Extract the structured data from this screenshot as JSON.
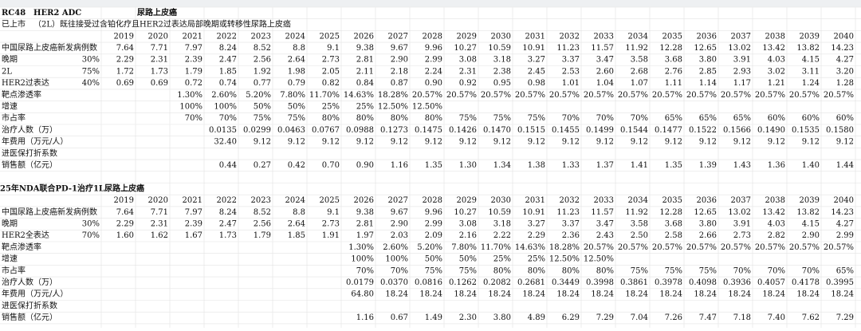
{
  "sections": [
    {
      "title_row": [
        "RC48",
        "HER2 ADC",
        "尿路上皮癌"
      ],
      "subtitle_row": [
        "已上市",
        "（2L）既往接受过含铂化疗且HER2过表达局部晚期或转移性尿路上皮癌"
      ],
      "years": [
        2019,
        2020,
        2021,
        2022,
        2023,
        2024,
        2025,
        2026,
        2027,
        2028,
        2029,
        2030,
        2031,
        2032,
        2033,
        2034,
        2035,
        2036,
        2037,
        2038,
        2039,
        2040
      ],
      "highlight_year_index": 2,
      "highlight_color": "#e0201f",
      "rows": [
        {
          "label": "中国尿路上皮癌新发病例数",
          "values": [
            "7.64",
            "7.71",
            "7.97",
            "8.24",
            "8.52",
            "8.8",
            "9.1",
            "9.38",
            "9.67",
            "9.96",
            "10.27",
            "10.59",
            "10.91",
            "11.23",
            "11.57",
            "11.92",
            "12.28",
            "12.65",
            "13.02",
            "13.42",
            "13.82",
            "14.23"
          ]
        },
        {
          "label": "晚期",
          "pct": "30%",
          "values": [
            "2.29",
            "2.31",
            "2.39",
            "2.47",
            "2.56",
            "2.64",
            "2.73",
            "2.81",
            "2.90",
            "2.99",
            "3.08",
            "3.18",
            "3.27",
            "3.37",
            "3.47",
            "3.58",
            "3.68",
            "3.80",
            "3.91",
            "4.03",
            "4.15",
            "4.27"
          ]
        },
        {
          "label": "2L",
          "pct": "75%",
          "values": [
            "1.72",
            "1.73",
            "1.79",
            "1.85",
            "1.92",
            "1.98",
            "2.05",
            "2.11",
            "2.18",
            "2.24",
            "2.31",
            "2.38",
            "2.45",
            "2.53",
            "2.60",
            "2.68",
            "2.76",
            "2.85",
            "2.93",
            "3.02",
            "3.11",
            "3.20"
          ]
        },
        {
          "label": "HER2过表达",
          "pct": "40%",
          "values": [
            "0.69",
            "0.69",
            "0.72",
            "0.74",
            "0.77",
            "0.79",
            "0.82",
            "0.84",
            "0.87",
            "0.90",
            "0.92",
            "0.95",
            "0.98",
            "1.01",
            "1.04",
            "1.07",
            "1.11",
            "1.14",
            "1.17",
            "1.21",
            "1.24",
            "1.28"
          ]
        },
        {
          "label": "靶点渗透率",
          "values": [
            null,
            null,
            "1.30%",
            "2.60%",
            "5.20%",
            "7.80%",
            "11.70%",
            "14.63%",
            "18.28%",
            "20.57%",
            "20.57%",
            "20.57%",
            "20.57%",
            "20.57%",
            "20.57%",
            "20.57%",
            "20.57%",
            "20.57%",
            "20.57%",
            "20.57%",
            "20.57%",
            "20.57%"
          ]
        },
        {
          "label": "增速",
          "values": [
            null,
            null,
            "100%",
            "100%",
            "50%",
            "50%",
            "25%",
            "25%",
            "12.50%",
            "12.50%",
            null,
            null,
            null,
            null,
            null,
            null,
            null,
            null,
            null,
            null,
            null,
            null
          ]
        },
        {
          "label": "市占率",
          "values": [
            null,
            null,
            "70%",
            "70%",
            "75%",
            "75%",
            "80%",
            "80%",
            "80%",
            "80%",
            "75%",
            "75%",
            "75%",
            "70%",
            "70%",
            "70%",
            "65%",
            "65%",
            "65%",
            "60%",
            "60%",
            "60%"
          ]
        },
        {
          "label": "治疗人数（万）",
          "values": [
            null,
            null,
            null,
            "0.0135",
            "0.0299",
            "0.0463",
            "0.0767",
            "0.0988",
            "0.1273",
            "0.1475",
            "0.1426",
            "0.1470",
            "0.1515",
            "0.1455",
            "0.1499",
            "0.1544",
            "0.1477",
            "0.1522",
            "0.1566",
            "0.1490",
            "0.1535",
            "0.1580"
          ]
        },
        {
          "label": "年费用（万元/人）",
          "values": [
            null,
            null,
            null,
            "32.40",
            "9.12",
            "9.12",
            "9.12",
            "9.12",
            "9.12",
            "9.12",
            "9.12",
            "9.12",
            "9.12",
            "9.12",
            "9.12",
            "9.12",
            "9.12",
            "9.12",
            "9.12",
            "9.12",
            "9.12",
            "9.12"
          ]
        },
        {
          "label": "进医保打折系数",
          "values": [
            null,
            null,
            null,
            null,
            null,
            null,
            null,
            null,
            null,
            null,
            null,
            null,
            null,
            null,
            null,
            null,
            null,
            null,
            null,
            null,
            null,
            null
          ]
        },
        {
          "label": "销售额（亿元）",
          "values": [
            null,
            null,
            null,
            "0.44",
            "0.27",
            "0.42",
            "0.70",
            "0.90",
            "1.16",
            "1.35",
            "1.30",
            "1.34",
            "1.38",
            "1.33",
            "1.37",
            "1.41",
            "1.35",
            "1.39",
            "1.43",
            "1.36",
            "1.40",
            "1.44"
          ]
        }
      ]
    },
    {
      "title_row": [
        "25年NDA联合PD-1治疗1L尿路上皮癌"
      ],
      "years": [
        2019,
        2020,
        2021,
        2022,
        2023,
        2024,
        2025,
        2026,
        2027,
        2028,
        2029,
        2030,
        2031,
        2032,
        2033,
        2034,
        2035,
        2036,
        2037,
        2038,
        2039,
        2040
      ],
      "highlight_year_index": 7,
      "highlight_color": "#e0201f",
      "rows": [
        {
          "label": "中国尿路上皮癌新发病例数",
          "values": [
            "7.64",
            "7.71",
            "7.97",
            "8.24",
            "8.52",
            "8.8",
            "9.1",
            "9.38",
            "9.67",
            "9.96",
            "10.27",
            "10.59",
            "10.91",
            "11.23",
            "11.57",
            "11.92",
            "12.28",
            "12.65",
            "13.02",
            "13.42",
            "13.82",
            "14.23"
          ]
        },
        {
          "label": "晚期",
          "pct": "30%",
          "values": [
            "2.29",
            "2.31",
            "2.39",
            "2.47",
            "2.56",
            "2.64",
            "2.73",
            "2.81",
            "2.90",
            "2.99",
            "3.08",
            "3.18",
            "3.27",
            "3.37",
            "3.47",
            "3.58",
            "3.68",
            "3.80",
            "3.91",
            "4.03",
            "4.15",
            "4.27"
          ]
        },
        {
          "label": "HER2全表达",
          "pct": "70%",
          "values": [
            "1.60",
            "1.62",
            "1.67",
            "1.73",
            "1.79",
            "1.85",
            "1.91",
            "1.97",
            "2.03",
            "2.09",
            "2.16",
            "2.22",
            "2.29",
            "2.36",
            "2.43",
            "2.50",
            "2.58",
            "2.66",
            "2.73",
            "2.82",
            "2.90",
            "2.99"
          ]
        },
        {
          "label": "靶点渗透率",
          "values": [
            null,
            null,
            null,
            null,
            null,
            null,
            null,
            "1.30%",
            "2.60%",
            "5.20%",
            "7.80%",
            "11.70%",
            "14.63%",
            "18.28%",
            "20.57%",
            "20.57%",
            "20.57%",
            "20.57%",
            "20.57%",
            "20.57%",
            "20.57%",
            "20.57%"
          ]
        },
        {
          "label": "增速",
          "values": [
            null,
            null,
            null,
            null,
            null,
            null,
            null,
            "100%",
            "100%",
            "50%",
            "50%",
            "25%",
            "25%",
            "12.50%",
            "12.50%",
            null,
            null,
            null,
            null,
            null,
            null,
            null
          ]
        },
        {
          "label": "市占率",
          "values": [
            null,
            null,
            null,
            null,
            null,
            null,
            null,
            "70%",
            "70%",
            "75%",
            "75%",
            "80%",
            "80%",
            "80%",
            "80%",
            "75%",
            "75%",
            "75%",
            "70%",
            "70%",
            "70%",
            "65%"
          ]
        },
        {
          "label": "治疗人数（万）",
          "values": [
            null,
            null,
            null,
            null,
            null,
            null,
            null,
            "0.0179",
            "0.0370",
            "0.0816",
            "0.1262",
            "0.2082",
            "0.2681",
            "0.3449",
            "0.3998",
            "0.3861",
            "0.3978",
            "0.4098",
            "0.3936",
            "0.4057",
            "0.4178",
            "0.3995"
          ]
        },
        {
          "label": "年费用（万元/人）",
          "values": [
            null,
            null,
            null,
            null,
            null,
            null,
            null,
            "64.80",
            "18.24",
            "18.24",
            "18.24",
            "18.24",
            "18.24",
            "18.24",
            "18.24",
            "18.24",
            "18.24",
            "18.24",
            "18.24",
            "18.24",
            "18.24",
            "18.24"
          ]
        },
        {
          "label": "进医保打折系数",
          "values": [
            null,
            null,
            null,
            null,
            null,
            null,
            null,
            null,
            null,
            null,
            null,
            null,
            null,
            null,
            null,
            null,
            null,
            null,
            null,
            null,
            null,
            null
          ]
        },
        {
          "label": "销售额（亿元）",
          "values": [
            null,
            null,
            null,
            null,
            null,
            null,
            null,
            "1.16",
            "0.67",
            "1.49",
            "2.30",
            "3.80",
            "4.89",
            "6.29",
            "7.29",
            "7.04",
            "7.26",
            "7.47",
            "7.18",
            "7.40",
            "7.62",
            "7.29"
          ]
        }
      ]
    }
  ]
}
